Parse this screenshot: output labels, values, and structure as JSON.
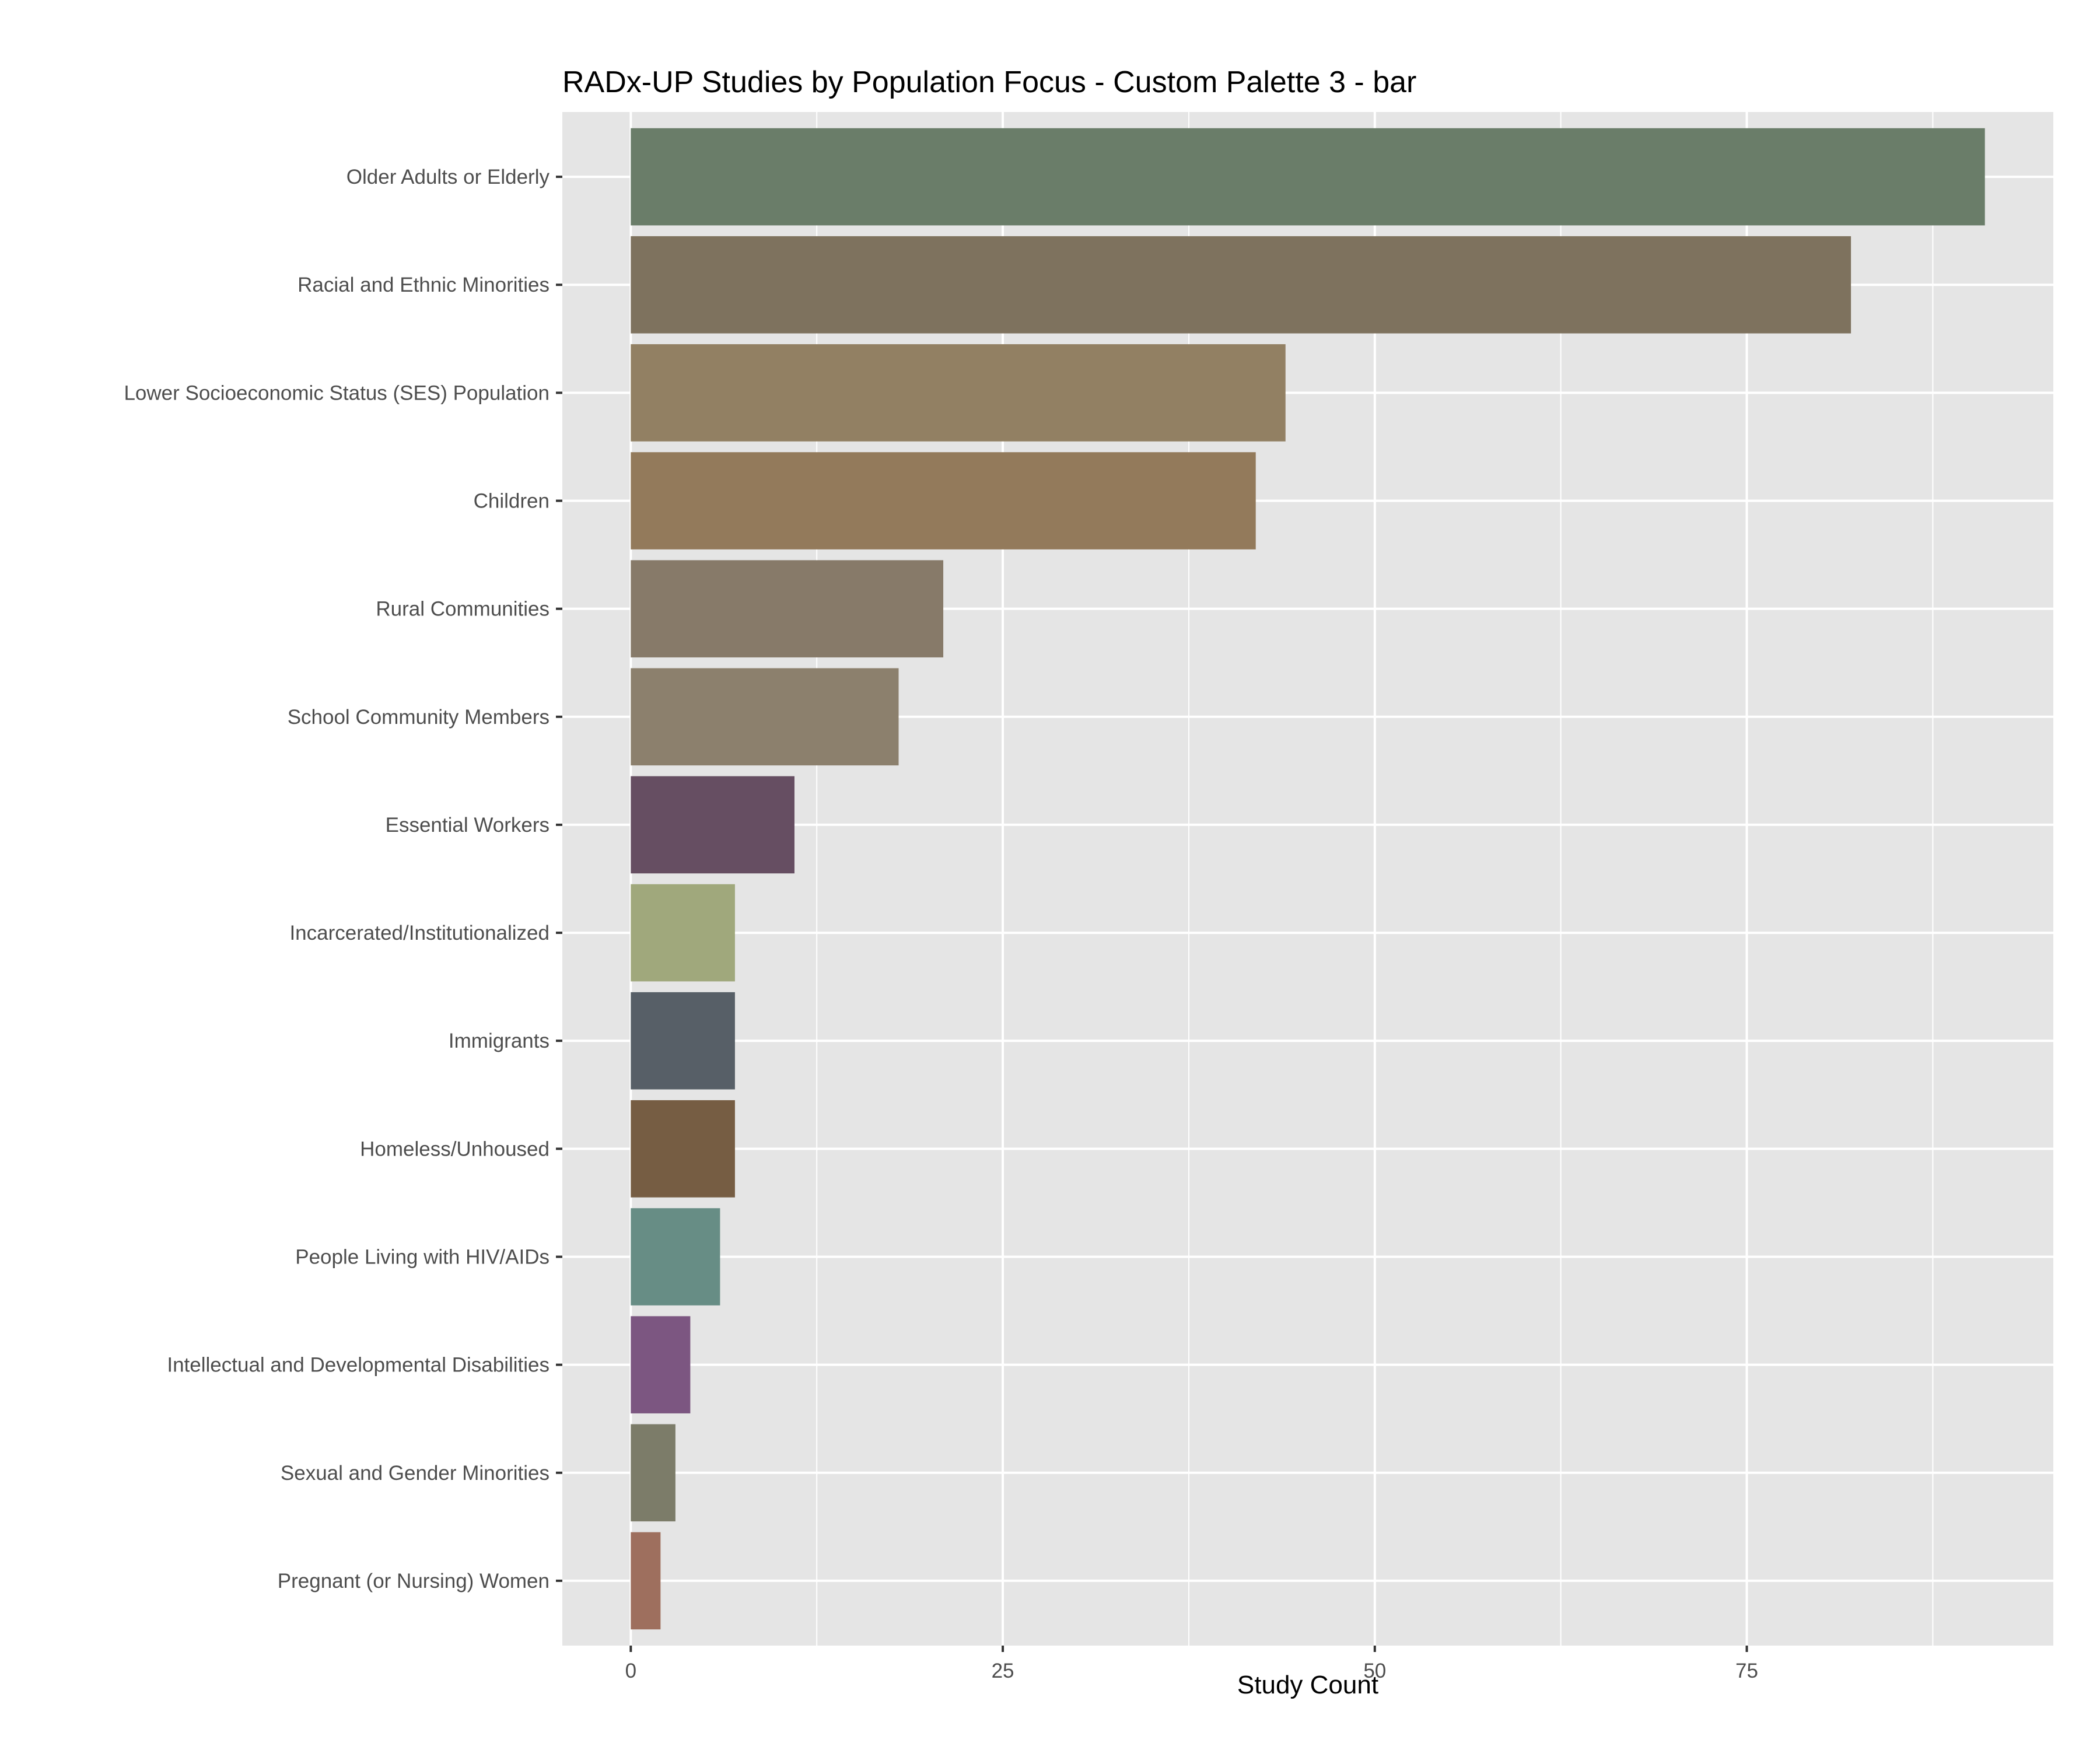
{
  "chart_data": {
    "type": "bar",
    "orientation": "horizontal",
    "title": "RADx-UP Studies by Population Focus - Custom Palette 3 - bar",
    "xlabel": "Study Count",
    "ylabel": "",
    "xlim": [
      -4.6,
      95.6
    ],
    "x_ticks": [
      0,
      25,
      50,
      75
    ],
    "x_tick_labels": [
      "0",
      "25",
      "50",
      "75"
    ],
    "grid": true,
    "legend": "none",
    "panel_background": "#e5e5e5",
    "grid_color": "#ffffff",
    "categories": [
      "Older Adults or Elderly",
      "Racial and Ethnic Minorities",
      "Lower Socioeconomic Status (SES) Population",
      "Children",
      "Rural Communities",
      "School Community Members",
      "Essential Workers",
      "Incarcerated/Institutionalized",
      "Immigrants",
      "Homeless/Unhoused",
      "People Living with HIV/AIDs",
      "Intellectual and Developmental Disabilities",
      "Sexual and Gender Minorities",
      "Pregnant (or Nursing) Women"
    ],
    "values": [
      91,
      82,
      44,
      42,
      21,
      18,
      11,
      7,
      7,
      7,
      6,
      4,
      3,
      2
    ],
    "colors": [
      "#6a7d69",
      "#7e725e",
      "#928063",
      "#937a5b",
      "#877a69",
      "#8c806d",
      "#664e62",
      "#a0a87c",
      "#575f67",
      "#765d43",
      "#678d85",
      "#7c5681",
      "#7c7c69",
      "#9e6f5e"
    ]
  }
}
